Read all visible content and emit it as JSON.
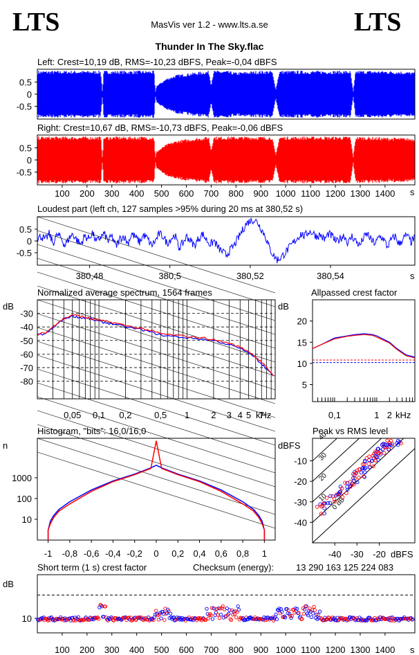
{
  "header": {
    "logo_left": "LTS",
    "logo_right": "LTS",
    "app_title": "MasVis ver 1.2 - www.lts.a.se",
    "file_name": "Thunder In The Sky.flac"
  },
  "colors": {
    "left": "#0000ff",
    "right": "#ff0000",
    "axis": "#000000"
  },
  "chart_data": [
    {
      "id": "left-waveform",
      "type": "area",
      "title": "Left: Crest=10,19 dB, RMS=-10,23 dBFS, Peak=-0,04 dBFS",
      "yticks": [
        "0.5",
        "0",
        "-0.5"
      ],
      "ylim": [
        -1,
        1
      ],
      "xlim": [
        0,
        1520
      ],
      "envelope": [
        [
          0,
          0.97
        ],
        [
          40,
          0.97
        ],
        [
          120,
          0.97
        ],
        [
          255,
          0.97
        ],
        [
          262,
          0.1
        ],
        [
          268,
          0.97
        ],
        [
          350,
          0.97
        ],
        [
          360,
          0.97
        ],
        [
          470,
          0.97
        ],
        [
          475,
          0.05
        ],
        [
          480,
          0.35
        ],
        [
          520,
          0.65
        ],
        [
          560,
          0.8
        ],
        [
          630,
          0.9
        ],
        [
          690,
          0.97
        ],
        [
          700,
          0.4
        ],
        [
          710,
          0.97
        ],
        [
          760,
          0.97
        ],
        [
          800,
          0.9
        ],
        [
          860,
          0.95
        ],
        [
          900,
          0.97
        ],
        [
          945,
          0.97
        ],
        [
          960,
          0.2
        ],
        [
          975,
          0.97
        ],
        [
          1100,
          0.97
        ],
        [
          1190,
          0.97
        ],
        [
          1230,
          0.97
        ],
        [
          1260,
          0.97
        ],
        [
          1272,
          0.1
        ],
        [
          1282,
          0.97
        ],
        [
          1400,
          0.97
        ],
        [
          1470,
          0.95
        ],
        [
          1520,
          0.9
        ]
      ]
    },
    {
      "id": "right-waveform",
      "type": "area",
      "title": "Right: Crest=10,67 dB, RMS=-10,73 dBFS, Peak=-0,06 dBFS",
      "yticks": [
        "0.5",
        "0",
        "-0.5"
      ],
      "ylim": [
        -1,
        1
      ],
      "xlim": [
        0,
        1520
      ],
      "xlabel": "s",
      "xticks": [
        "100",
        "200",
        "300",
        "400",
        "500",
        "600",
        "700",
        "800",
        "900",
        "1000",
        "1100",
        "1200",
        "1300",
        "1400"
      ],
      "envelope": [
        [
          0,
          0.97
        ],
        [
          255,
          0.97
        ],
        [
          262,
          0.1
        ],
        [
          268,
          0.97
        ],
        [
          470,
          0.97
        ],
        [
          475,
          0.05
        ],
        [
          480,
          0.35
        ],
        [
          520,
          0.65
        ],
        [
          560,
          0.8
        ],
        [
          630,
          0.9
        ],
        [
          690,
          0.97
        ],
        [
          700,
          0.4
        ],
        [
          710,
          0.97
        ],
        [
          945,
          0.97
        ],
        [
          960,
          0.2
        ],
        [
          975,
          0.97
        ],
        [
          1260,
          0.97
        ],
        [
          1272,
          0.1
        ],
        [
          1282,
          0.97
        ],
        [
          1520,
          0.9
        ]
      ]
    },
    {
      "id": "loudest-part",
      "type": "line",
      "title": "Loudest part (left  ch, 127 samples >95% during 20 ms at 380,52 s)",
      "yticks": [
        "0.5",
        "0",
        "-0.5"
      ],
      "ylim": [
        -1,
        1
      ],
      "xlim": [
        380.467,
        380.561
      ],
      "xticks": [
        "380,48",
        "380,5",
        "380,52",
        "380,54"
      ],
      "xlabel": "s",
      "y": [
        0.1,
        0.2,
        0.05,
        0.3,
        -0.1,
        0.25,
        0.15,
        -0.2,
        0.1,
        0.3,
        0.05,
        -0.15,
        0.2,
        0.1,
        0.35,
        -0.05,
        0.15,
        0.3,
        0.0,
        0.2,
        -0.25,
        0.1,
        0.2,
        -0.1,
        0.3,
        0.15,
        -0.05,
        0.25,
        0.1,
        -0.2,
        0.0,
        0.3,
        0.2,
        -0.1,
        0.1,
        0.25,
        -0.3,
        -0.1,
        0.2,
        0.0,
        -0.2,
        0.1,
        0.3,
        0.05,
        -0.15,
        0.0,
        -0.3,
        -0.45,
        -0.6,
        -0.4,
        -0.2,
        0.1,
        0.4,
        0.7,
        0.85,
        0.9,
        0.8,
        0.5,
        0.2,
        -0.3,
        -0.6,
        -0.8,
        -0.7,
        -0.5,
        -0.3,
        -0.1,
        0.1,
        0.3,
        0.2,
        0.4,
        0.35,
        0.2,
        0.25,
        0.05,
        0.3,
        0.2,
        -0.05,
        0.1,
        0.25,
        -0.1,
        0.2,
        0.0,
        -0.2,
        0.15,
        0.3,
        0.0,
        -0.1,
        0.2,
        0.1,
        -0.25,
        0.05,
        0.2,
        -0.15,
        0.1,
        0.25,
        -0.05,
        0.15
      ]
    },
    {
      "id": "average-spectrum",
      "type": "line",
      "title": "Normalized average spectrum, 1564 frames",
      "ylabel": "dB",
      "yticks": [
        "-30",
        "-40",
        "-50",
        "-60",
        "-70",
        "-80"
      ],
      "ylim": [
        -90,
        -20
      ],
      "xlabel": "kHz",
      "xticks": [
        "0,05",
        "0,1",
        "0,2",
        "0,5",
        "1",
        "2",
        "3",
        "4",
        "5",
        "7"
      ],
      "x_khz": [
        0.02,
        0.025,
        0.03,
        0.035,
        0.04,
        0.05,
        0.06,
        0.07,
        0.08,
        0.1,
        0.12,
        0.15,
        0.2,
        0.3,
        0.4,
        0.5,
        0.7,
        1,
        1.5,
        2,
        3,
        4,
        5,
        6,
        7,
        8,
        10
      ],
      "series": [
        {
          "color": "#0000ff",
          "values": [
            -46,
            -45,
            -41,
            -37,
            -34,
            -32,
            -33,
            -33.5,
            -34,
            -36,
            -37,
            -38,
            -40,
            -42,
            -44,
            -46,
            -47,
            -48,
            -49,
            -50,
            -53,
            -56,
            -59,
            -63,
            -67,
            -71,
            -78
          ]
        },
        {
          "color": "#ff0000",
          "values": [
            -46,
            -44,
            -40,
            -36,
            -34,
            -31,
            -32,
            -33,
            -34,
            -35,
            -36,
            -37,
            -39,
            -41,
            -43,
            -45,
            -46,
            -47,
            -48,
            -49.5,
            -52,
            -55,
            -58,
            -62,
            -66,
            -70,
            -77
          ]
        }
      ]
    },
    {
      "id": "allpassed-crest",
      "type": "line",
      "title": "Allpassed crest factor",
      "ylabel": "dB",
      "yticks": [
        "20",
        "15",
        "10",
        "5"
      ],
      "ylim": [
        1,
        25
      ],
      "xlabel": "kHz",
      "xticks": [
        "0,1",
        "1",
        "2"
      ],
      "x_khz": [
        0.03,
        0.05,
        0.1,
        0.2,
        0.3,
        0.5,
        0.8,
        1,
        2,
        3,
        5,
        8
      ],
      "series": [
        {
          "color": "#0000ff",
          "values": [
            13.5,
            14.5,
            16,
            16.5,
            16.8,
            17,
            16.8,
            16.5,
            15,
            13.5,
            12,
            11.5
          ]
        },
        {
          "color": "#ff0000",
          "values": [
            13.5,
            14.5,
            15.8,
            16.4,
            16.6,
            16.8,
            16.6,
            16.2,
            14.8,
            13.3,
            11.8,
            11.3
          ]
        }
      ],
      "reference_lines": [
        10.2,
        10.8
      ]
    },
    {
      "id": "histogram",
      "type": "line",
      "title": "Histogram, \"bits\": 16,0/16,0",
      "ylabel": "n",
      "yticks": [
        "1000",
        "100",
        "10"
      ],
      "xticks": [
        "-1",
        "-0,8",
        "-0,6",
        "-0,4",
        "-0,2",
        "0",
        "0,2",
        "0,4",
        "0,6",
        "0,8",
        "1"
      ],
      "xlim": [
        -1.1,
        1.1
      ],
      "x": [
        -1,
        -0.98,
        -0.95,
        -0.9,
        -0.8,
        -0.6,
        -0.4,
        -0.2,
        -0.05,
        0,
        0.05,
        0.2,
        0.4,
        0.6,
        0.8,
        0.9,
        0.95,
        0.98,
        1
      ],
      "series": [
        {
          "color": "#0000ff",
          "values": [
            3,
            8,
            15,
            30,
            70,
            260,
            700,
            1500,
            3000,
            4000,
            3000,
            1500,
            700,
            260,
            70,
            30,
            15,
            8,
            3
          ]
        },
        {
          "color": "#ff0000",
          "values": [
            3,
            6,
            12,
            25,
            55,
            220,
            650,
            1400,
            2800,
            60000,
            2800,
            1400,
            650,
            220,
            55,
            25,
            12,
            6,
            3
          ]
        }
      ]
    },
    {
      "id": "peak-vs-rms",
      "type": "scatter",
      "title": "Peak vs RMS level",
      "ylabel": "dBFS",
      "xlabel": "dBFS",
      "yticks": [
        "-10",
        "-20",
        "-30",
        "-40"
      ],
      "xticks": [
        "-40",
        "-30",
        "-20"
      ],
      "diagonal_labels": [
        "40",
        "30",
        "20",
        "10",
        "0 dB"
      ],
      "points": [
        [
          -46,
          -34
        ],
        [
          -45,
          -32
        ],
        [
          -44,
          -30
        ],
        [
          -42,
          -29
        ],
        [
          -40,
          -27
        ],
        [
          -38,
          -26
        ],
        [
          -36,
          -24
        ],
        [
          -35,
          -22
        ],
        [
          -33,
          -21
        ],
        [
          -32,
          -20
        ],
        [
          -31,
          -18
        ],
        [
          -30,
          -17
        ],
        [
          -29,
          -16
        ],
        [
          -28,
          -14
        ],
        [
          -27,
          -13
        ],
        [
          -26,
          -12
        ],
        [
          -25,
          -11
        ],
        [
          -24,
          -10
        ],
        [
          -23,
          -9
        ],
        [
          -22,
          -8
        ],
        [
          -21,
          -7
        ],
        [
          -20,
          -6
        ],
        [
          -19,
          -5
        ],
        [
          -18,
          -4
        ],
        [
          -17,
          -3
        ],
        [
          -16,
          -2
        ],
        [
          -15,
          -1
        ],
        [
          -14,
          -1
        ],
        [
          -13,
          0
        ],
        [
          -12,
          0
        ]
      ]
    },
    {
      "id": "short-term-crest",
      "type": "scatter",
      "title": "Short term (1 s) crest factor",
      "checksum_label": "Checksum (energy):",
      "checksum_value": "13 290 163 125 224 083",
      "ylabel": "dB",
      "yticks": [
        "10"
      ],
      "xticks": [
        "100",
        "200",
        "300",
        "400",
        "500",
        "600",
        "700",
        "800",
        "900",
        "1000",
        "1100",
        "1200",
        "1300",
        "1400"
      ],
      "xlabel": "s",
      "xlim": [
        0,
        1520
      ],
      "ylim": [
        5,
        25
      ],
      "reference_line": 18
    }
  ]
}
